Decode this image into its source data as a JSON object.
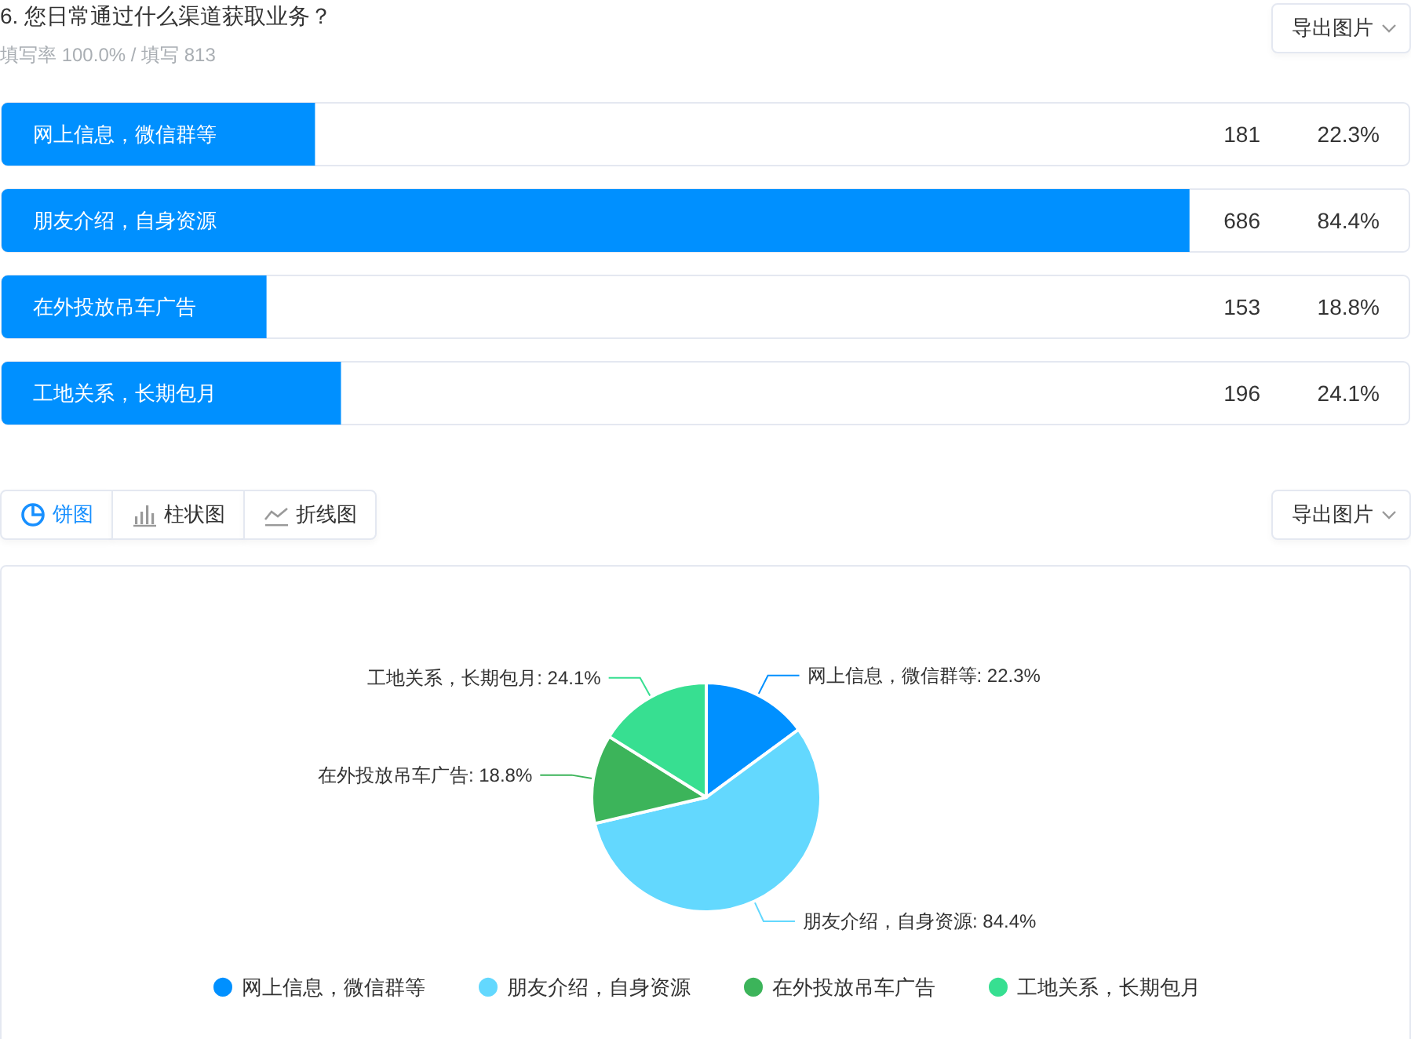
{
  "chart_data": [
    {
      "type": "bar",
      "orientation": "horizontal",
      "title": "6. 您日常通过什么渠道获取业务？",
      "subtitle": "填写率 100.0% / 填写 813",
      "categories": [
        "网上信息，微信群等",
        "朋友介绍，自身资源",
        "在外投放吊车广告",
        "工地关系，长期包月"
      ],
      "values": [
        181,
        686,
        153,
        196
      ],
      "color": "#0090ff",
      "xlim": [
        0,
        813
      ],
      "data_labels": true,
      "tick_labels": "y",
      "annotations": [
        "22.3%",
        "84.4%",
        "18.8%",
        "24.1%",
        "导出图片"
      ]
    },
    {
      "type": "pie",
      "categories": [
        "网上信息，微信群等",
        "朋友介绍，自身资源",
        "在外投放吊车广告",
        "工地关系，长期包月"
      ],
      "values": [
        22.3,
        84.4,
        18.8,
        24.1
      ],
      "colors": [
        "#0090ff",
        "#63d8fe",
        "#3cb45a",
        "#37df91"
      ],
      "value_labels": [
        "网上信息，微信群等: 22.3%",
        "朋友介绍，自身资源: 84.4%",
        "在外投放吊车广告: 18.8%",
        "工地关系，长期包月: 24.1%"
      ],
      "legend": "bottom",
      "annotations": [
        "饼图",
        "柱状图",
        "折线图",
        "导出图片"
      ]
    }
  ]
}
